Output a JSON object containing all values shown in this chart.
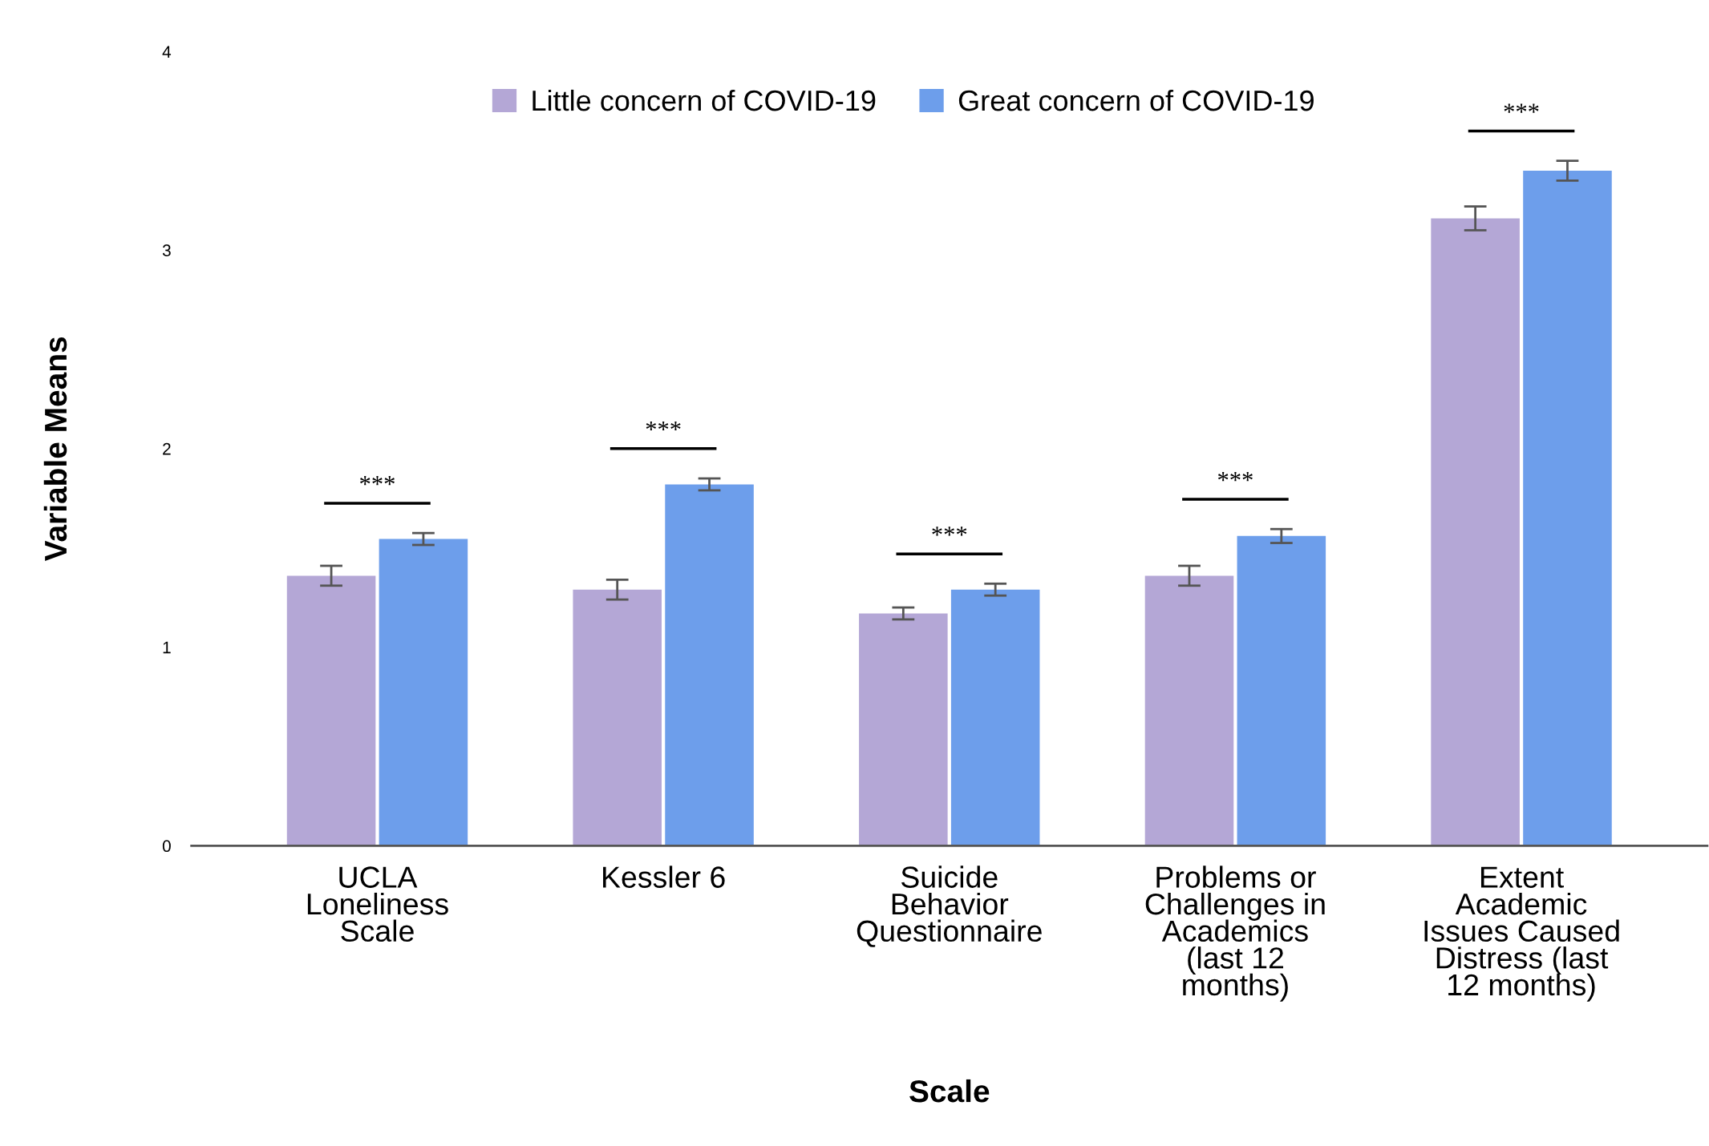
{
  "chart_data": {
    "type": "bar",
    "xlabel": "Scale",
    "ylabel": "Variable Means",
    "categories": [
      "UCLA Loneliness Scale",
      "Kessler 6",
      "Suicide Behavior Questionnaire",
      "Problems or Challenges in Academics (last 12 months)",
      "Extent Academic Issues Caused Distress (last 12 months)"
    ],
    "series": [
      {
        "name": "Little concern of COVID-19",
        "color": "#b4a7d6",
        "values": [
          1.36,
          1.29,
          1.17,
          1.36,
          3.16
        ],
        "errors": [
          0.05,
          0.05,
          0.03,
          0.05,
          0.06
        ]
      },
      {
        "name": "Great concern of COVID-19",
        "color": "#6d9eeb",
        "values": [
          1.545,
          1.82,
          1.29,
          1.56,
          3.4
        ],
        "errors": [
          0.03,
          0.03,
          0.03,
          0.035,
          0.05
        ]
      }
    ],
    "ylim": [
      0,
      4
    ],
    "yticks": [
      0,
      1,
      2,
      3,
      4
    ],
    "grid": false,
    "legend": "top",
    "annotations": [
      "***",
      "***",
      "***",
      "***",
      "***"
    ]
  }
}
